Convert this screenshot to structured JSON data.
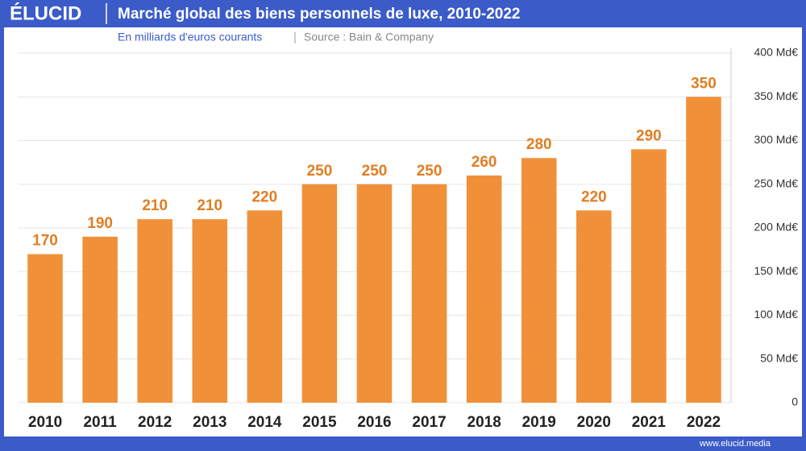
{
  "brand": "ÉLUCID",
  "footer": "www.elucid.media",
  "chart_data": {
    "type": "bar",
    "title": "Marché global des biens personnels de luxe, 2010-2022",
    "subtitle": "En milliards d'euros courants",
    "source": "Source : Bain & Company",
    "categories": [
      "2010",
      "2011",
      "2012",
      "2013",
      "2014",
      "2015",
      "2016",
      "2017",
      "2018",
      "2019",
      "2020",
      "2021",
      "2022"
    ],
    "values": [
      170,
      190,
      210,
      210,
      220,
      250,
      250,
      250,
      260,
      280,
      220,
      290,
      350
    ],
    "color": "#f0913a",
    "ylim": [
      0,
      400
    ],
    "yticks": [
      0,
      {
        "value": 50,
        "label": "50 Md€"
      },
      {
        "value": 100,
        "label": "100 Md€"
      },
      {
        "value": 150,
        "label": "150 Md€"
      },
      {
        "value": 200,
        "label": "200 Md€"
      },
      {
        "value": 250,
        "label": "250 Md€"
      },
      {
        "value": 300,
        "label": "300 Md€"
      },
      {
        "value": 350,
        "label": "350 Md€"
      },
      {
        "value": 400,
        "label": "400 Md€"
      }
    ],
    "grid": true
  }
}
